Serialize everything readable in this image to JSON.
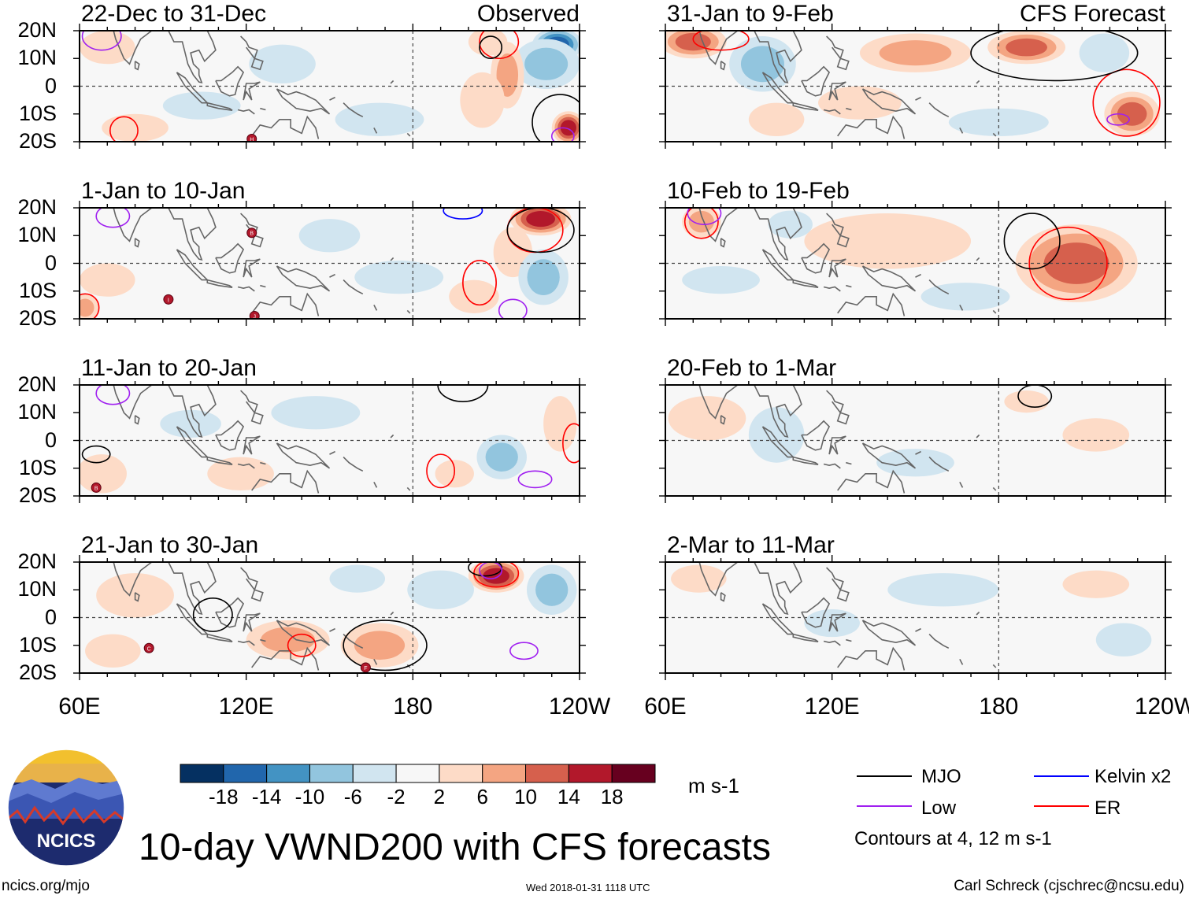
{
  "chart_data": {
    "type": "heatmap",
    "title": "10-day VWND200 with CFS forecasts",
    "variable": "VWND200",
    "units": "m s-1",
    "colorbar": {
      "levels": [
        -18,
        -14,
        -10,
        -6,
        -2,
        2,
        6,
        10,
        14,
        18
      ],
      "tick_labels": [
        "-18",
        "-14",
        "-10",
        "-6",
        "-2",
        "2",
        "6",
        "10",
        "14",
        "18"
      ],
      "colors": [
        "#053061",
        "#2166ac",
        "#4393c3",
        "#92c5de",
        "#d1e5f0",
        "#f7f7f7",
        "#fddbc7",
        "#f4a582",
        "#d6604d",
        "#b2182b",
        "#67001f"
      ]
    },
    "axes": {
      "x_ticks": [
        "60E",
        "120E",
        "180",
        "120W"
      ],
      "x_range": [
        60,
        240
      ],
      "y_ticks": [
        "20N",
        "10N",
        "0",
        "10S",
        "20S"
      ],
      "y_range": [
        -20,
        20
      ]
    },
    "column_headers": {
      "observed": "Observed",
      "forecast": "CFS Forecast"
    },
    "contour_note": "Contours at 4, 12 m s-1",
    "legend": [
      {
        "label": "MJO",
        "color": "#000000"
      },
      {
        "label": "Kelvin x2",
        "color": "#0000ff"
      },
      {
        "label": "Low",
        "color": "#a020f0"
      },
      {
        "label": "ER",
        "color": "#ff0000"
      }
    ],
    "panels": [
      {
        "period": "22-Dec to 31-Dec",
        "kind": "observed",
        "anomalies": [
          {
            "lon": 232,
            "lat": 15,
            "value": -16,
            "rx": 9,
            "ry": 6
          },
          {
            "lon": 228,
            "lat": 8,
            "value": -8,
            "rx": 12,
            "ry": 9
          },
          {
            "lon": 236,
            "lat": -15,
            "value": 16,
            "rx": 6,
            "ry": 6
          },
          {
            "lon": 214,
            "lat": 4,
            "value": 7,
            "rx": 6,
            "ry": 12
          },
          {
            "lon": 205,
            "lat": -5,
            "value": 5,
            "rx": 8,
            "ry": 10
          },
          {
            "lon": 207,
            "lat": 16,
            "value": 5,
            "rx": 7,
            "ry": 5
          },
          {
            "lon": 80,
            "lat": -15,
            "value": 4,
            "rx": 12,
            "ry": 5
          },
          {
            "lon": 70,
            "lat": 14,
            "value": 4,
            "rx": 10,
            "ry": 6
          },
          {
            "lon": 104,
            "lat": -7,
            "value": -3,
            "rx": 14,
            "ry": 5
          },
          {
            "lon": 168,
            "lat": -12,
            "value": -3,
            "rx": 16,
            "ry": 6
          },
          {
            "lon": 133,
            "lat": 8,
            "value": -3,
            "rx": 12,
            "ry": 7
          }
        ],
        "contours": [
          {
            "type": "ER",
            "lon": 76,
            "lat": -16,
            "rx": 5,
            "ry": 5
          },
          {
            "type": "ER",
            "lon": 211,
            "lat": 16,
            "rx": 7,
            "ry": 6
          },
          {
            "type": "MJO",
            "lon": 208,
            "lat": 14,
            "rx": 4,
            "ry": 4
          },
          {
            "type": "MJO",
            "lon": 233,
            "lat": -13,
            "rx": 10,
            "ry": 10
          },
          {
            "type": "Low",
            "lon": 68,
            "lat": 18,
            "rx": 7,
            "ry": 5
          },
          {
            "type": "Low",
            "lon": 234,
            "lat": -18,
            "rx": 4,
            "ry": 3
          }
        ],
        "storms": [
          {
            "id": "H",
            "lon": 122,
            "lat": -19
          }
        ]
      },
      {
        "period": "1-Jan to 10-Jan",
        "kind": "observed",
        "anomalies": [
          {
            "lon": 226,
            "lat": 16,
            "value": 15,
            "rx": 11,
            "ry": 6
          },
          {
            "lon": 216,
            "lat": 4,
            "value": 4,
            "rx": 7,
            "ry": 9
          },
          {
            "lon": 227,
            "lat": -5,
            "value": -6,
            "rx": 9,
            "ry": 10
          },
          {
            "lon": 62,
            "lat": -16,
            "value": 8,
            "rx": 5,
            "ry": 5
          },
          {
            "lon": 70,
            "lat": -6,
            "value": 4,
            "rx": 10,
            "ry": 6
          },
          {
            "lon": 150,
            "lat": 10,
            "value": -4,
            "rx": 11,
            "ry": 6
          },
          {
            "lon": 175,
            "lat": -5,
            "value": -3,
            "rx": 16,
            "ry": 6
          },
          {
            "lon": 202,
            "lat": -12,
            "value": 4,
            "rx": 9,
            "ry": 6
          }
        ],
        "contours": [
          {
            "type": "ER",
            "lon": 224,
            "lat": 12,
            "rx": 10,
            "ry": 8
          },
          {
            "type": "ER",
            "lon": 204,
            "lat": -7,
            "rx": 6,
            "ry": 8
          },
          {
            "type": "ER",
            "lon": 62,
            "lat": -16,
            "rx": 5,
            "ry": 5
          },
          {
            "type": "MJO",
            "lon": 226,
            "lat": 12,
            "rx": 12,
            "ry": 8
          },
          {
            "type": "Low",
            "lon": 72,
            "lat": 17,
            "rx": 6,
            "ry": 4
          },
          {
            "type": "Low",
            "lon": 216,
            "lat": -17,
            "rx": 5,
            "ry": 4
          },
          {
            "type": "Kelvin x2",
            "lon": 198,
            "lat": 19,
            "rx": 7,
            "ry": 3
          }
        ],
        "storms": [
          {
            "id": "B",
            "lon": 122,
            "lat": 11
          },
          {
            "id": "I",
            "lon": 92,
            "lat": -13
          },
          {
            "id": "J",
            "lon": 123,
            "lat": -19
          }
        ]
      },
      {
        "period": "11-Jan to 20-Jan",
        "kind": "observed",
        "anomalies": [
          {
            "lon": 68,
            "lat": -12,
            "value": 4,
            "rx": 9,
            "ry": 7
          },
          {
            "lon": 118,
            "lat": -12,
            "value": 4,
            "rx": 12,
            "ry": 6
          },
          {
            "lon": 212,
            "lat": -6,
            "value": -6,
            "rx": 9,
            "ry": 8
          },
          {
            "lon": 145,
            "lat": 10,
            "value": -3,
            "rx": 16,
            "ry": 6
          },
          {
            "lon": 233,
            "lat": 6,
            "value": 4,
            "rx": 6,
            "ry": 10
          },
          {
            "lon": 195,
            "lat": -12,
            "value": 4,
            "rx": 7,
            "ry": 5
          },
          {
            "lon": 100,
            "lat": 6,
            "value": -3,
            "rx": 11,
            "ry": 5
          }
        ],
        "contours": [
          {
            "type": "ER",
            "lon": 190,
            "lat": -11,
            "rx": 5,
            "ry": 6
          },
          {
            "type": "ER",
            "lon": 238,
            "lat": -1,
            "rx": 4,
            "ry": 7
          },
          {
            "type": "MJO",
            "lon": 66,
            "lat": -5,
            "rx": 5,
            "ry": 3
          },
          {
            "type": "MJO",
            "lon": 198,
            "lat": 20,
            "rx": 9,
            "ry": 6
          },
          {
            "type": "Low",
            "lon": 72,
            "lat": 17,
            "rx": 6,
            "ry": 4
          },
          {
            "type": "Low",
            "lon": 224,
            "lat": -14,
            "rx": 6,
            "ry": 3
          }
        ],
        "storms": [
          {
            "id": "B",
            "lon": 66,
            "lat": -17
          }
        ]
      },
      {
        "period": "21-Jan to 30-Jan",
        "kind": "observed",
        "anomalies": [
          {
            "lon": 210,
            "lat": 15,
            "value": 14,
            "rx": 10,
            "ry": 6
          },
          {
            "lon": 230,
            "lat": 10,
            "value": -8,
            "rx": 9,
            "ry": 9
          },
          {
            "lon": 168,
            "lat": -10,
            "value": 8,
            "rx": 14,
            "ry": 8
          },
          {
            "lon": 135,
            "lat": -8,
            "value": 6,
            "rx": 15,
            "ry": 7
          },
          {
            "lon": 80,
            "lat": 8,
            "value": 4,
            "rx": 14,
            "ry": 8
          },
          {
            "lon": 190,
            "lat": 10,
            "value": -5,
            "rx": 12,
            "ry": 7
          },
          {
            "lon": 72,
            "lat": -12,
            "value": 4,
            "rx": 10,
            "ry": 6
          },
          {
            "lon": 160,
            "lat": 14,
            "value": -3,
            "rx": 10,
            "ry": 5
          }
        ],
        "contours": [
          {
            "type": "ER",
            "lon": 140,
            "lat": -10,
            "rx": 5,
            "ry": 4
          },
          {
            "type": "ER",
            "lon": 210,
            "lat": 16,
            "rx": 8,
            "ry": 5
          },
          {
            "type": "MJO",
            "lon": 170,
            "lat": -10,
            "rx": 15,
            "ry": 9
          },
          {
            "type": "MJO",
            "lon": 108,
            "lat": 1,
            "rx": 7,
            "ry": 6
          },
          {
            "type": "MJO",
            "lon": 206,
            "lat": 18,
            "rx": 6,
            "ry": 3
          },
          {
            "type": "Low",
            "lon": 220,
            "lat": -12,
            "rx": 5,
            "ry": 3
          },
          {
            "type": "Low",
            "lon": 208,
            "lat": 17,
            "rx": 4,
            "ry": 3
          }
        ],
        "storms": [
          {
            "id": "C",
            "lon": 85,
            "lat": -11
          },
          {
            "id": "F",
            "lon": 163,
            "lat": -18
          }
        ]
      },
      {
        "period": "31-Jan to 9-Feb",
        "kind": "forecast",
        "anomalies": [
          {
            "lon": 70,
            "lat": 16,
            "value": 10,
            "rx": 12,
            "ry": 6
          },
          {
            "lon": 95,
            "lat": 8,
            "value": -6,
            "rx": 12,
            "ry": 10
          },
          {
            "lon": 190,
            "lat": 14,
            "value": 10,
            "rx": 14,
            "ry": 6
          },
          {
            "lon": 150,
            "lat": 12,
            "value": 6,
            "rx": 20,
            "ry": 7
          },
          {
            "lon": 228,
            "lat": -10,
            "value": 12,
            "rx": 10,
            "ry": 8
          },
          {
            "lon": 218,
            "lat": 12,
            "value": -4,
            "rx": 9,
            "ry": 7
          },
          {
            "lon": 130,
            "lat": -6,
            "value": 4,
            "rx": 15,
            "ry": 6
          },
          {
            "lon": 180,
            "lat": -13,
            "value": -4,
            "rx": 18,
            "ry": 5
          },
          {
            "lon": 100,
            "lat": -12,
            "value": 4,
            "rx": 10,
            "ry": 6
          }
        ],
        "contours": [
          {
            "type": "ER",
            "lon": 226,
            "lat": -6,
            "rx": 12,
            "ry": 12
          },
          {
            "type": "ER",
            "lon": 80,
            "lat": 17,
            "rx": 10,
            "ry": 4
          },
          {
            "type": "MJO",
            "lon": 200,
            "lat": 12,
            "rx": 30,
            "ry": 10
          },
          {
            "type": "Low",
            "lon": 223,
            "lat": -12,
            "rx": 4,
            "ry": 2
          }
        ],
        "storms": []
      },
      {
        "period": "10-Feb to 19-Feb",
        "kind": "forecast",
        "anomalies": [
          {
            "lon": 208,
            "lat": 0,
            "value": 12,
            "rx": 22,
            "ry": 14
          },
          {
            "lon": 73,
            "lat": 15,
            "value": 8,
            "rx": 7,
            "ry": 6
          },
          {
            "lon": 140,
            "lat": 8,
            "value": 4,
            "rx": 30,
            "ry": 10
          },
          {
            "lon": 80,
            "lat": -6,
            "value": -4,
            "rx": 14,
            "ry": 5
          },
          {
            "lon": 168,
            "lat": -12,
            "value": -3,
            "rx": 16,
            "ry": 5
          },
          {
            "lon": 105,
            "lat": 14,
            "value": -3,
            "rx": 8,
            "ry": 5
          }
        ],
        "contours": [
          {
            "type": "ER",
            "lon": 205,
            "lat": 0,
            "rx": 14,
            "ry": 13
          },
          {
            "type": "ER",
            "lon": 73,
            "lat": 15,
            "rx": 6,
            "ry": 6
          },
          {
            "type": "MJO",
            "lon": 192,
            "lat": 8,
            "rx": 10,
            "ry": 10
          },
          {
            "type": "Low",
            "lon": 74,
            "lat": 18,
            "rx": 6,
            "ry": 4
          }
        ],
        "storms": []
      },
      {
        "period": "20-Feb to 1-Mar",
        "kind": "forecast",
        "anomalies": [
          {
            "lon": 75,
            "lat": 8,
            "value": 3,
            "rx": 14,
            "ry": 8
          },
          {
            "lon": 100,
            "lat": 2,
            "value": -3,
            "rx": 10,
            "ry": 10
          },
          {
            "lon": 190,
            "lat": 14,
            "value": 3,
            "rx": 8,
            "ry": 4
          },
          {
            "lon": 150,
            "lat": -8,
            "value": -3,
            "rx": 14,
            "ry": 5
          },
          {
            "lon": 215,
            "lat": 2,
            "value": 3,
            "rx": 12,
            "ry": 6
          }
        ],
        "contours": [
          {
            "type": "MJO",
            "lon": 193,
            "lat": 16,
            "rx": 6,
            "ry": 4
          }
        ],
        "storms": []
      },
      {
        "period": "2-Mar to 11-Mar",
        "kind": "forecast",
        "anomalies": [
          {
            "lon": 72,
            "lat": 14,
            "value": 3,
            "rx": 10,
            "ry": 5
          },
          {
            "lon": 215,
            "lat": 12,
            "value": 3,
            "rx": 12,
            "ry": 5
          },
          {
            "lon": 160,
            "lat": 10,
            "value": -3,
            "rx": 20,
            "ry": 6
          },
          {
            "lon": 225,
            "lat": -8,
            "value": -3,
            "rx": 10,
            "ry": 6
          },
          {
            "lon": 120,
            "lat": -2,
            "value": -3,
            "rx": 10,
            "ry": 5
          }
        ],
        "contours": [],
        "storms": []
      }
    ]
  },
  "footer": {
    "logo_text": "NCICS",
    "site": "ncics.org/mjo",
    "timestamp": "Wed 2018-01-31 1118 UTC",
    "author": "Carl Schreck (cjschrec@ncsu.edu)"
  }
}
